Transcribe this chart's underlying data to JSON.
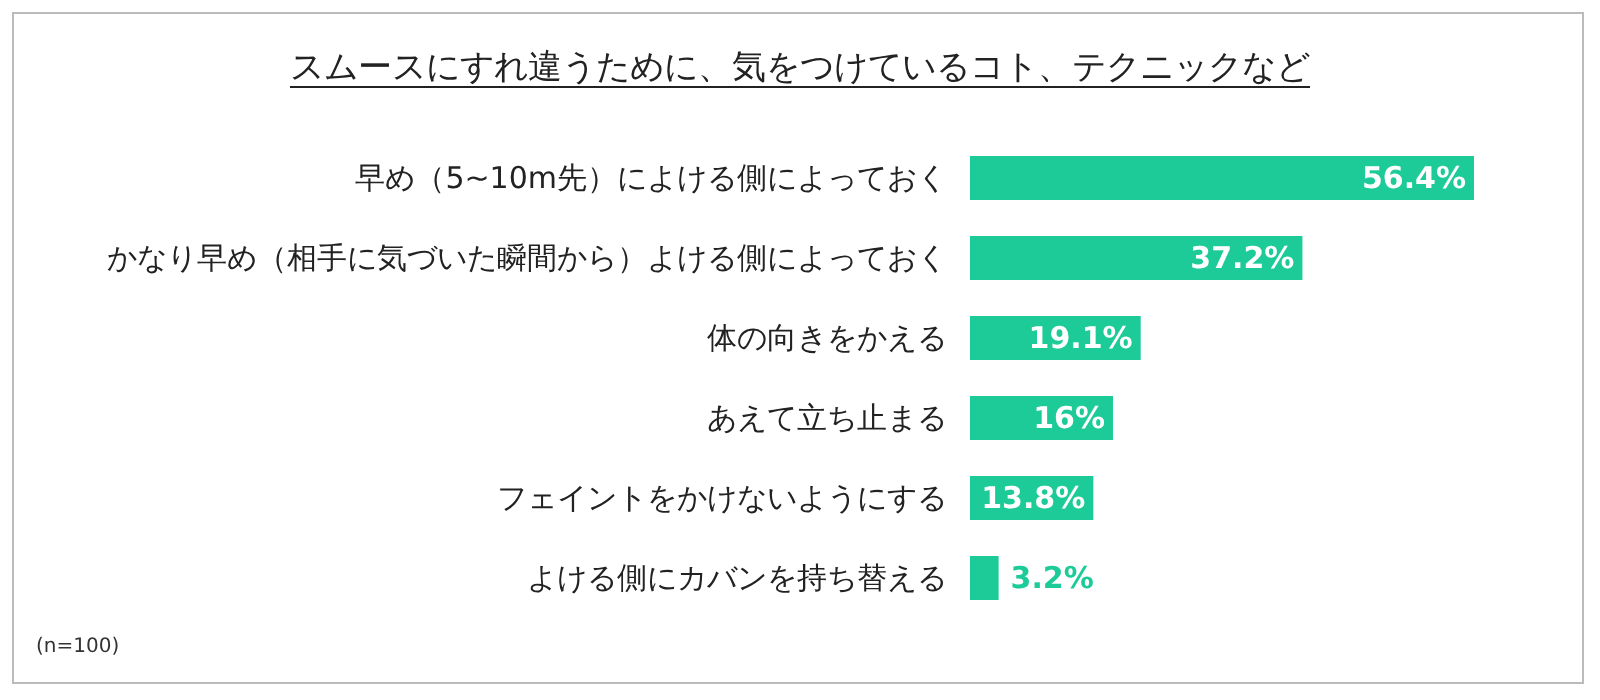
{
  "chart_data": {
    "type": "bar",
    "orientation": "horizontal",
    "title": "スムースにすれ違うために、気をつけているコト、テクニックなど",
    "categories": [
      "早め（5~10m先）によける側によっておく",
      "かなり早め（相手に気づいた瞬間から）よける側によっておく",
      "体の向きをかえる",
      "あえて立ち止まる",
      "フェイントをかけないようにする",
      "よける側にカバンを持ち替える"
    ],
    "values": [
      56.4,
      37.2,
      19.1,
      16,
      13.8,
      3.2
    ],
    "value_labels": [
      "56.4%",
      "37.2%",
      "19.1%",
      "16%",
      "13.8%",
      "3.2%"
    ],
    "color": "#1ccb97",
    "annotations": [
      "(n=100)"
    ]
  }
}
